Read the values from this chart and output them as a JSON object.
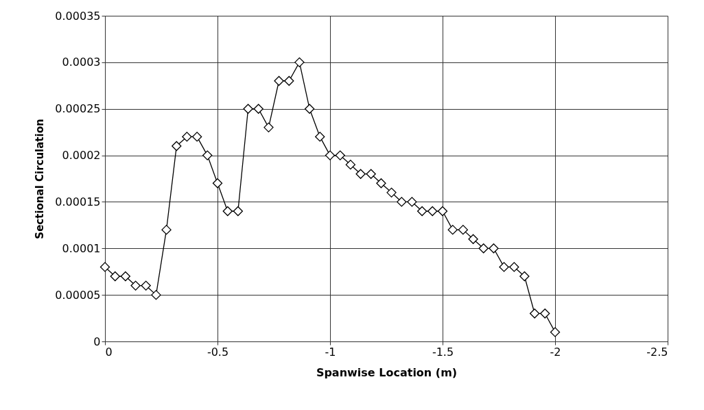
{
  "chart_data": {
    "type": "line",
    "xlabel": "Spanwise Location (m)",
    "ylabel": "Sectional Circulation",
    "x": [
      0,
      -0.045,
      -0.091,
      -0.136,
      -0.182,
      -0.227,
      -0.273,
      -0.318,
      -0.364,
      -0.409,
      -0.455,
      -0.5,
      -0.545,
      -0.591,
      -0.636,
      -0.682,
      -0.727,
      -0.773,
      -0.818,
      -0.864,
      -0.909,
      -0.955,
      -1,
      -1.045,
      -1.091,
      -1.136,
      -1.182,
      -1.227,
      -1.273,
      -1.318,
      -1.364,
      -1.409,
      -1.455,
      -1.5,
      -1.545,
      -1.591,
      -1.636,
      -1.682,
      -1.727,
      -1.773,
      -1.818,
      -1.864,
      -1.909,
      -1.955,
      -2
    ],
    "series": [
      {
        "color": "#000000",
        "values": [
          8e-05,
          7e-05,
          7e-05,
          6e-05,
          6e-05,
          5e-05,
          0.00012,
          0.00021,
          0.00022,
          0.00022,
          0.0002,
          0.00017,
          0.00014,
          0.00014,
          0.00025,
          0.00025,
          0.00023,
          0.00028,
          0.00028,
          0.0003,
          0.00025,
          0.00022,
          0.0002,
          0.0002,
          0.00019,
          0.00018,
          0.00018,
          0.00017,
          0.00016,
          0.00015,
          0.00015,
          0.00014,
          0.00014,
          0.00014,
          0.00012,
          0.00012,
          0.00011,
          0.0001,
          0.0001,
          8e-05,
          8e-05,
          7e-05,
          3e-05,
          3e-05,
          1e-05
        ]
      }
    ],
    "xlim": [
      0,
      -2.5
    ],
    "xticks": [
      0,
      -0.5,
      -1,
      -1.5,
      -2,
      -2.5
    ],
    "ylim": [
      0,
      0.00035
    ],
    "yticks": [
      0,
      {
        "value": 5e-05,
        "label": "0.00005"
      },
      {
        "value": 0.0001,
        "label": "0.0001"
      },
      {
        "value": 0.00015,
        "label": "0.00015"
      },
      {
        "value": 0.0002,
        "label": "0.0002"
      },
      {
        "value": 0.00025,
        "label": "0.00025"
      },
      {
        "value": 0.0003,
        "label": "0.0003"
      },
      {
        "value": 0.00035,
        "label": "0.00035"
      }
    ],
    "grid": true,
    "marker": "diamond",
    "line_style": "solid"
  }
}
